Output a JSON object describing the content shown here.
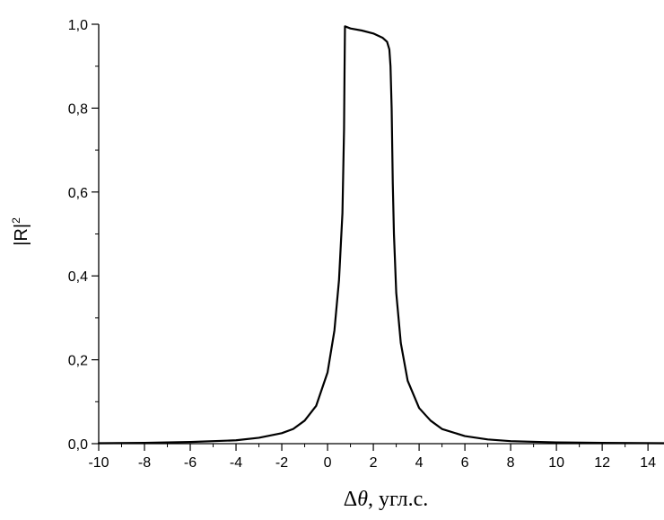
{
  "chart_data": {
    "type": "line",
    "title": "",
    "xlabel": "Δθ, угл.с.",
    "xlabel_parts": {
      "delta": "Δ",
      "theta": "θ",
      "units": ", угл.с."
    },
    "ylabel": "|R|2",
    "ylabel_parts": {
      "base": "|R|",
      "sup": "2"
    },
    "xlim": [
      -10,
      14.7
    ],
    "ylim": [
      0,
      1.0
    ],
    "x_ticks": [
      -10,
      -8,
      -6,
      -4,
      -2,
      0,
      2,
      4,
      6,
      8,
      10,
      12,
      14
    ],
    "x_tick_labels": [
      "-10",
      "-8",
      "-6",
      "-4",
      "-2",
      "0",
      "2",
      "4",
      "6",
      "8",
      "10",
      "12",
      "14"
    ],
    "y_ticks": [
      0,
      0.2,
      0.4,
      0.6,
      0.8,
      1.0
    ],
    "y_tick_labels": [
      "0,0",
      "0,2",
      "0,4",
      "0,6",
      "0,8",
      "1,0"
    ],
    "grid": false,
    "series": [
      {
        "color": "#000000",
        "x": [
          -10,
          -8,
          -6,
          -4,
          -3,
          -2,
          -1.5,
          -1,
          -0.5,
          0,
          0.3,
          0.5,
          0.65,
          0.72,
          0.74,
          0.76,
          1.0,
          1.5,
          2.0,
          2.4,
          2.6,
          2.7,
          2.75,
          2.8,
          2.85,
          2.9,
          3.0,
          3.2,
          3.5,
          4.0,
          4.5,
          5.0,
          6.0,
          7.0,
          8.0,
          10.0,
          12.0,
          14.7
        ],
        "y": [
          0.001,
          0.002,
          0.004,
          0.008,
          0.014,
          0.025,
          0.035,
          0.055,
          0.09,
          0.17,
          0.27,
          0.39,
          0.55,
          0.75,
          0.88,
          0.995,
          0.99,
          0.985,
          0.978,
          0.968,
          0.958,
          0.94,
          0.9,
          0.8,
          0.62,
          0.5,
          0.36,
          0.24,
          0.15,
          0.085,
          0.055,
          0.035,
          0.018,
          0.01,
          0.006,
          0.003,
          0.002,
          0.001
        ]
      }
    ]
  }
}
